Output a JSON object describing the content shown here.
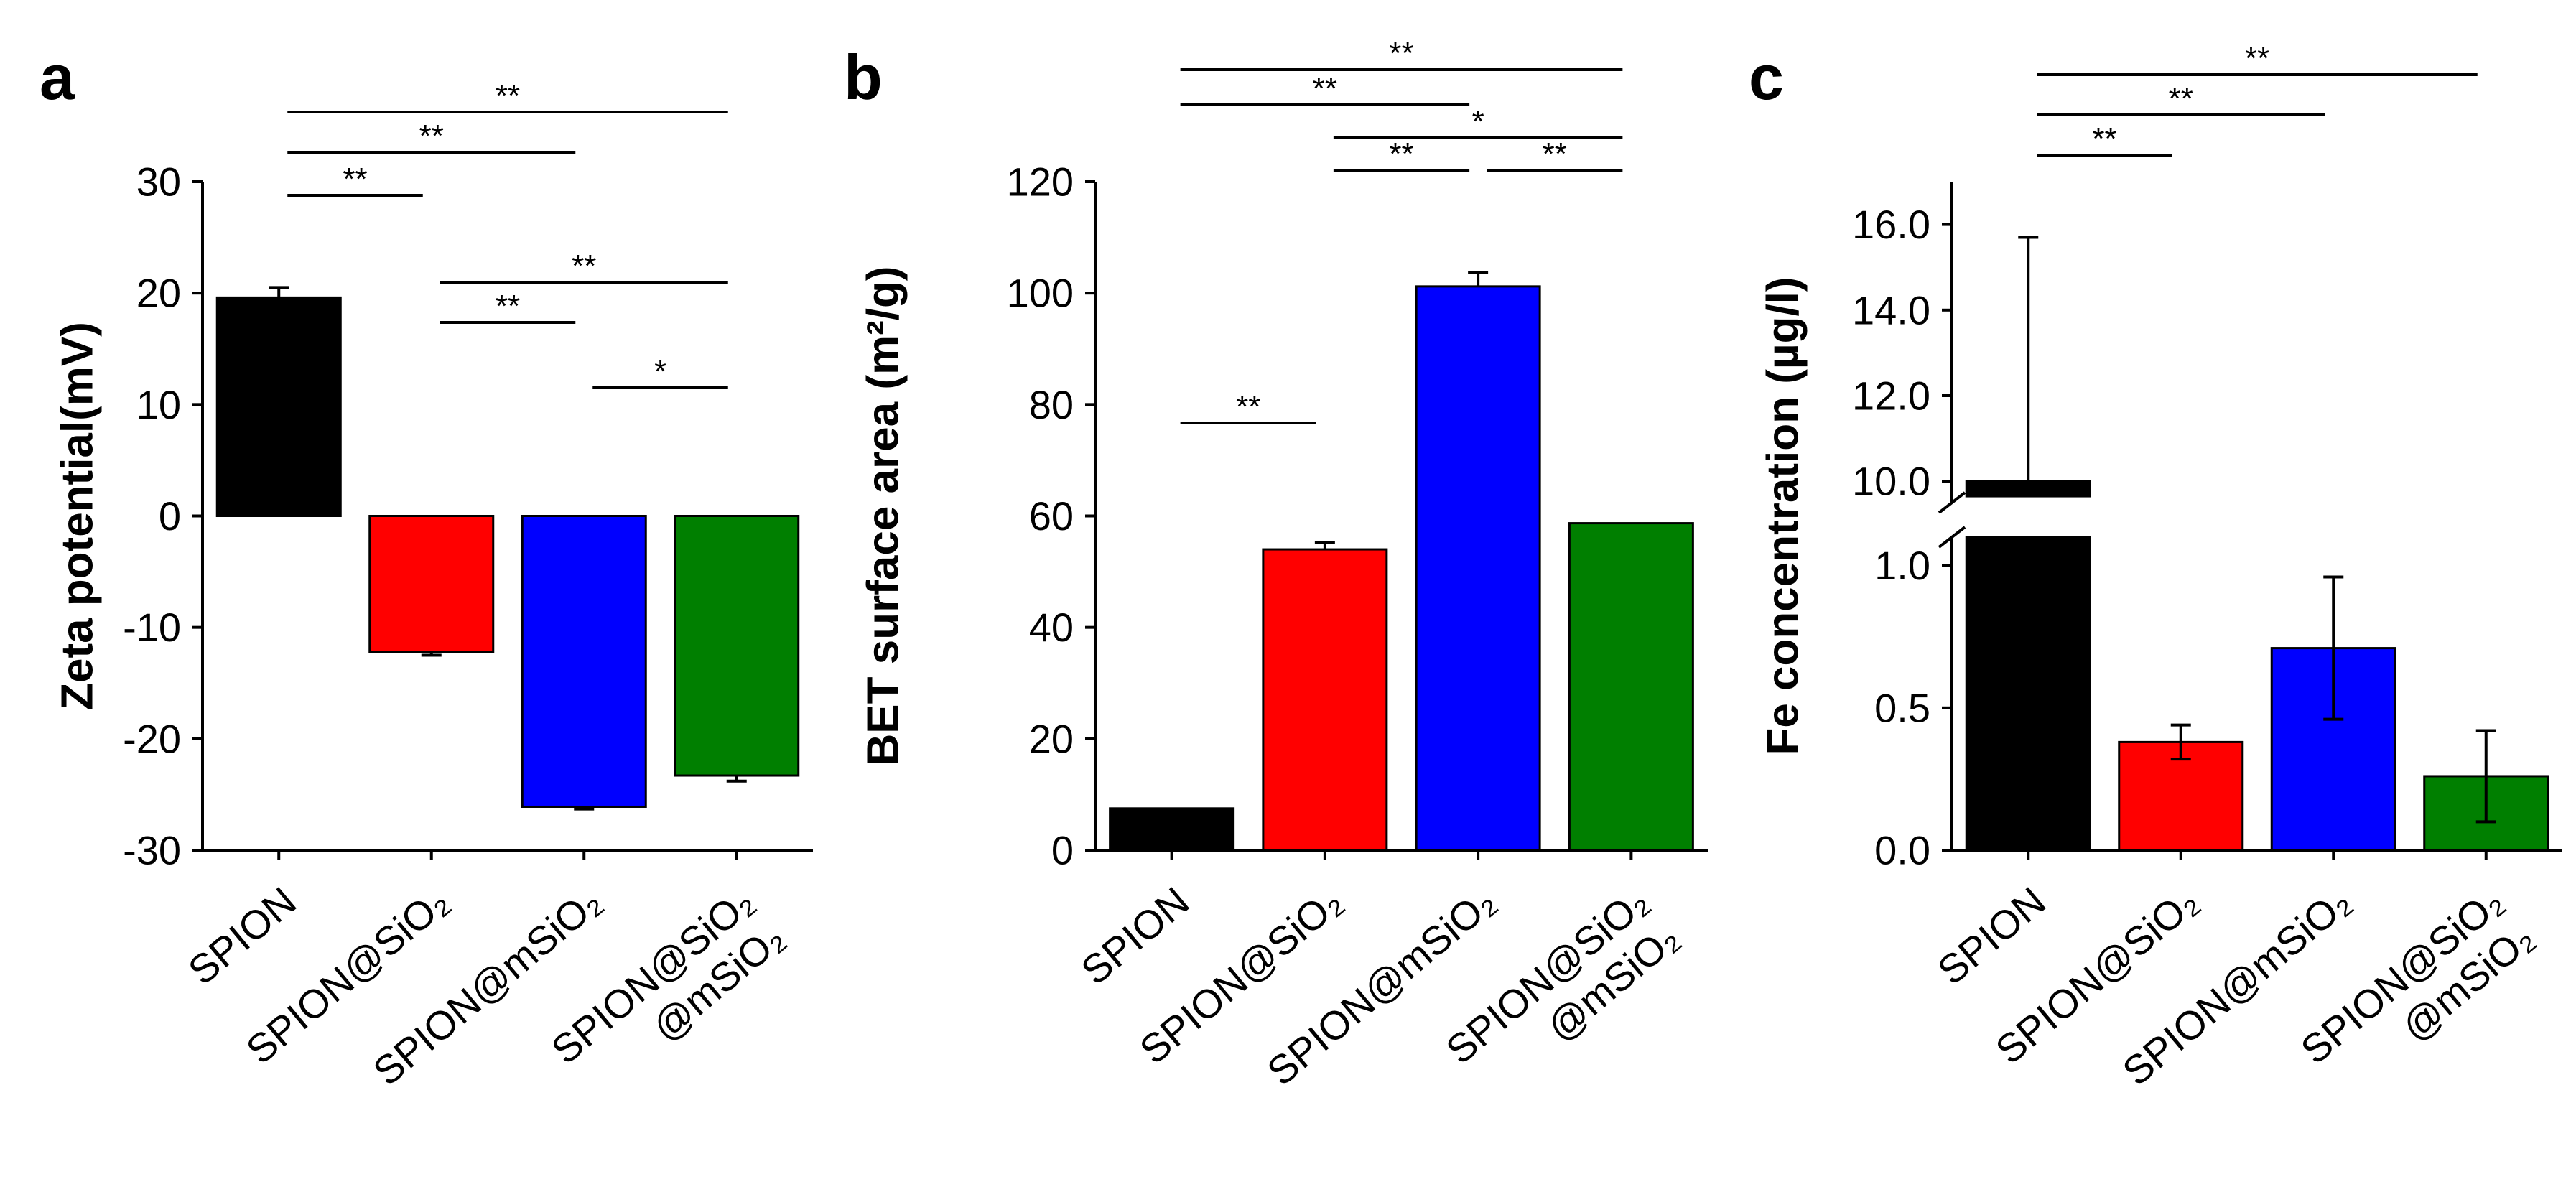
{
  "panels": [
    {
      "letter": "a"
    },
    {
      "letter": "b"
    },
    {
      "letter": "c"
    }
  ],
  "chart_data": [
    {
      "type": "bar",
      "panel": "a",
      "ylabel": "Zeta potential(mV)",
      "ylim": [
        -30,
        30
      ],
      "yticks": [
        30,
        20,
        10,
        0,
        -10,
        -20,
        -30
      ],
      "ytick_labels": [
        "30",
        "20",
        "10",
        "0",
        "-10",
        "-20",
        "-30"
      ],
      "categories": [
        [
          "SPION"
        ],
        [
          "SPION@SiO₂"
        ],
        [
          "SPION@mSiO₂"
        ],
        [
          "SPION@SiO₂",
          "@mSiO₂"
        ]
      ],
      "colors": [
        "#000000",
        "#ff0000",
        "#0000ff",
        "#007f00"
      ],
      "values": [
        19.6,
        -12.2,
        -26.1,
        -23.3
      ],
      "errors": [
        0.9,
        0.3,
        0.2,
        0.5
      ],
      "significance": [
        {
          "from": 0,
          "to": 1,
          "label": "**"
        },
        {
          "from": 0,
          "to": 2,
          "label": "**"
        },
        {
          "from": 0,
          "to": 3,
          "label": "**"
        },
        {
          "from": 1,
          "to": 3,
          "label": "**"
        },
        {
          "from": 1,
          "to": 2,
          "label": "**"
        },
        {
          "from": 2,
          "to": 3,
          "label": "*"
        }
      ]
    },
    {
      "type": "bar",
      "panel": "b",
      "ylabel": "BET surface area (m²/g)",
      "ylim": [
        0,
        120
      ],
      "yticks": [
        120,
        100,
        80,
        60,
        40,
        20,
        0
      ],
      "ytick_labels": [
        "120",
        "100",
        "80",
        "60",
        "40",
        "20",
        "0"
      ],
      "categories": [
        [
          "SPION"
        ],
        [
          "SPION@SiO₂"
        ],
        [
          "SPION@mSiO₂"
        ],
        [
          "SPION@SiO₂",
          "@mSiO₂"
        ]
      ],
      "colors": [
        "#000000",
        "#ff0000",
        "#0000ff",
        "#007f00"
      ],
      "values": [
        7.5,
        54.0,
        101.2,
        58.7
      ],
      "errors": [
        0,
        1.2,
        2.5,
        0
      ],
      "significance": [
        {
          "from": 0,
          "to": 3,
          "label": "**"
        },
        {
          "from": 0,
          "to": 2,
          "label": "**"
        },
        {
          "from": 1,
          "to": 3,
          "label": "*"
        },
        {
          "from": 1,
          "to": 2,
          "label": "**"
        },
        {
          "from": 2,
          "to": 3,
          "label": "**"
        },
        {
          "from": 0,
          "to": 1,
          "label": "**"
        }
      ]
    },
    {
      "type": "bar",
      "panel": "c",
      "ylabel": "Fe concentration (µg/l)",
      "axis_break": {
        "lower_range": [
          0,
          1.1
        ],
        "upper_range": [
          9.5,
          17
        ]
      },
      "yticks_lower": [
        0.0,
        0.5,
        1.0
      ],
      "ytick_labels_lower": [
        "0.0",
        "0.5",
        "1.0"
      ],
      "yticks_upper": [
        10.0,
        12.0,
        14.0,
        16.0
      ],
      "ytick_labels_upper": [
        "10.0",
        "12.0",
        "14.0",
        "16.0"
      ],
      "categories": [
        [
          "SPION"
        ],
        [
          "SPION@SiO₂"
        ],
        [
          "SPION@mSiO₂"
        ],
        [
          "SPION@SiO₂",
          "@mSiO₂"
        ]
      ],
      "colors": [
        "#000000",
        "#ff0000",
        "#0000ff",
        "#007f00"
      ],
      "values": [
        10.0,
        0.38,
        0.71,
        0.26
      ],
      "errors": [
        5.7,
        0.06,
        0.25,
        0.16
      ],
      "significance": [
        {
          "from": 0,
          "to": 3,
          "label": "**"
        },
        {
          "from": 0,
          "to": 2,
          "label": "**"
        },
        {
          "from": 0,
          "to": 1,
          "label": "**"
        }
      ]
    }
  ]
}
